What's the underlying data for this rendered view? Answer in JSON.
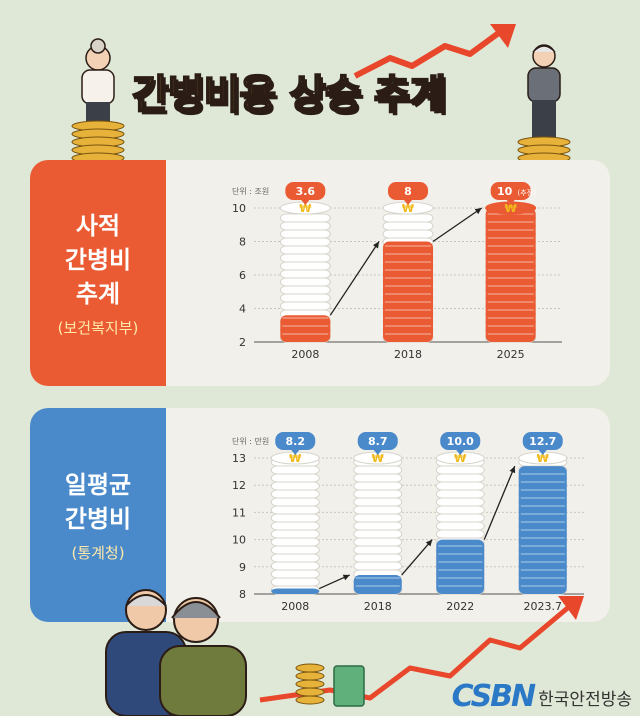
{
  "title": {
    "part1": "간병비용",
    "part2": "상승 추계"
  },
  "panels": [
    {
      "label_lines": [
        "사적",
        "간병비",
        "추계"
      ],
      "source": "(보건복지부)"
    },
    {
      "label_lines": [
        "일평균",
        "간병비"
      ],
      "source": "(통계청)"
    }
  ],
  "brand": {
    "name": "한국안전방송"
  },
  "colors": {
    "orange": "#ea5b33",
    "blue": "#4a8acb",
    "badge_orange": "#ea5b33",
    "badge_blue": "#4a8acb"
  },
  "chart_data": [
    {
      "type": "bar",
      "unit": "단위 : 조원",
      "categories": [
        "2008",
        "2018",
        "2025"
      ],
      "values": [
        3.6,
        8,
        10
      ],
      "value_labels": [
        "3.6",
        "8",
        "10"
      ],
      "value_notes": [
        "",
        "",
        "(추정)"
      ],
      "ylim": [
        2,
        10
      ],
      "yticks": [
        2,
        4,
        6,
        8,
        10
      ]
    },
    {
      "type": "bar",
      "unit": "단위 : 만원",
      "categories": [
        "2008",
        "2018",
        "2022",
        "2023.7"
      ],
      "values": [
        8.2,
        8.7,
        10.0,
        12.7
      ],
      "value_labels": [
        "8.2",
        "8.7",
        "10.0",
        "12.7"
      ],
      "ylim": [
        8,
        13
      ],
      "yticks": [
        8,
        9,
        10,
        11,
        12,
        13
      ]
    }
  ]
}
